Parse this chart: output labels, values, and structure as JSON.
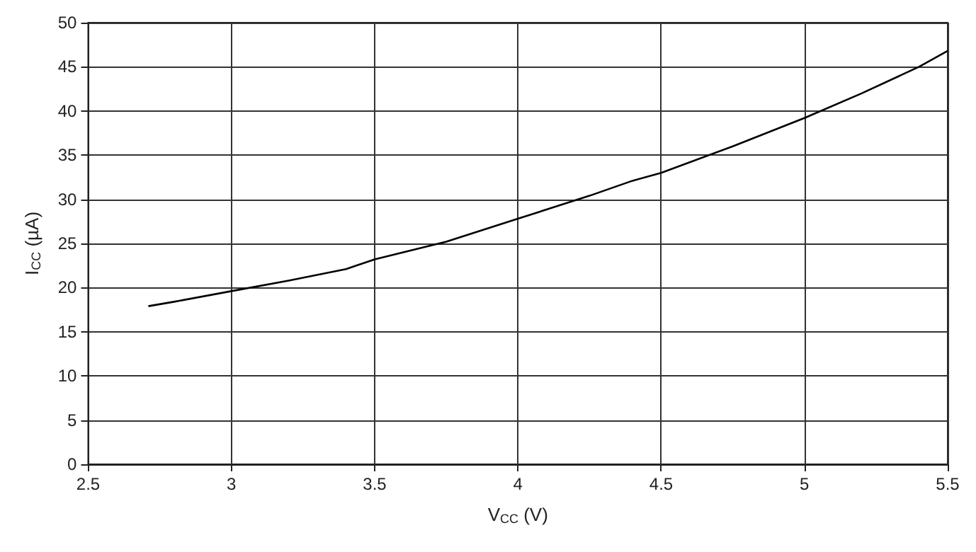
{
  "chart_data": {
    "type": "line",
    "xlabel": "V$_{CC}$ (V)",
    "ylabel": "I$_{CC}$ (µA)",
    "xlim": [
      2.5,
      5.5
    ],
    "xticks": [
      2.5,
      3,
      3.5,
      4,
      4.5,
      5,
      5.5
    ],
    "ylim": [
      0,
      50
    ],
    "yticks": [
      0,
      5,
      10,
      15,
      20,
      25,
      30,
      35,
      40,
      45,
      50
    ],
    "grid": true,
    "marker": "none",
    "line_style": "solid",
    "series": [
      {
        "color": "#000000",
        "x": [
          2.71,
          2.8,
          3,
          3.2,
          3.4,
          3.5,
          3.75,
          4,
          4.25,
          4.4,
          4.5,
          4.75,
          5,
          5.2,
          5.4,
          5.5
        ],
        "values": [
          17.9,
          18.4,
          19.6,
          20.8,
          22.1,
          23.2,
          25.2,
          27.8,
          30.4,
          32.1,
          33,
          36,
          39.2,
          42,
          45,
          46.8
        ]
      }
    ]
  }
}
